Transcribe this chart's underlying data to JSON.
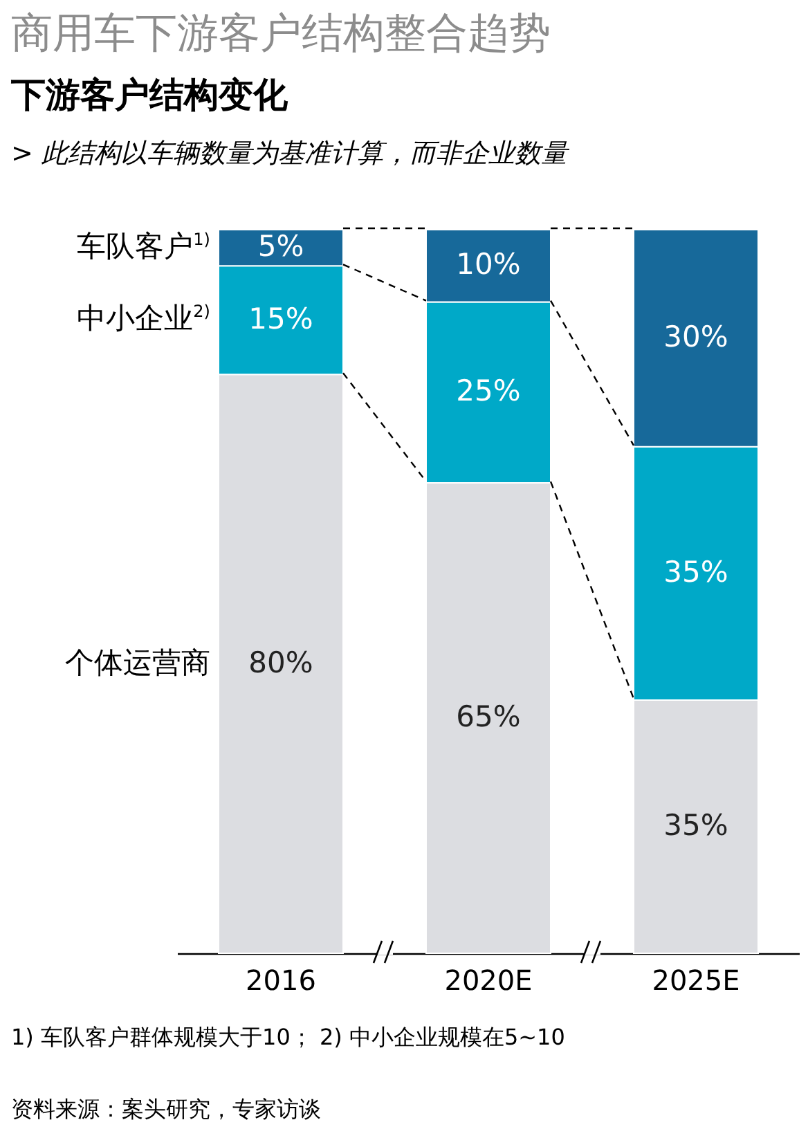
{
  "chart_data": {
    "type": "bar",
    "title": "商用车下游客户结构整合趋势",
    "subtitle": "下游客户结构变化",
    "stacked": true,
    "categories": [
      "2016",
      "2020E",
      "2025E"
    ],
    "series": [
      {
        "name": "个体运营商",
        "color": "#dcdde1",
        "values": [
          80,
          65,
          35
        ],
        "value_labels": [
          "80%",
          "65%",
          "35%"
        ]
      },
      {
        "name": "中小企业$^{2)}$",
        "color": "#00a9c8",
        "values": [
          15,
          25,
          35
        ],
        "value_labels": [
          "15%",
          "25%",
          "35%"
        ]
      },
      {
        "name": "车队客户$^{1)}$",
        "color": "#17699a",
        "values": [
          5,
          10,
          30
        ],
        "value_labels": [
          "5%",
          "10%",
          "30%"
        ]
      }
    ],
    "annotations": [
      "> 此结构以车辆数量为基准计算，而非企业数量",
      "1) 车队客户群体规模大于10； 2) 中小企业规模在5~10",
      "资料来源：案头研究，专家访谈"
    ]
  }
}
